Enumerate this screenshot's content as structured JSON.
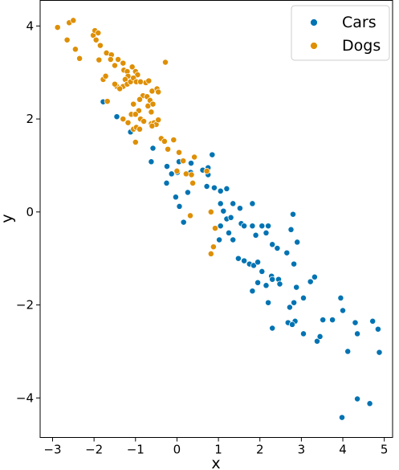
{
  "chart_data": {
    "type": "scatter",
    "xlabel": "x",
    "ylabel": "y",
    "xlim": [
      -3.3,
      5.2
    ],
    "ylim": [
      -4.85,
      4.55
    ],
    "xticks": [
      -3,
      -2,
      -1,
      0,
      1,
      2,
      3,
      4,
      5
    ],
    "yticks": [
      -4,
      -2,
      0,
      2,
      4
    ],
    "grid": false,
    "legend_position": "upper right",
    "colors": {
      "Cars": "#0173b2",
      "Dogs": "#de8f05"
    },
    "series": [
      {
        "name": "Cars",
        "points": [
          [
            -1.78,
            2.37
          ],
          [
            -1.45,
            2.05
          ],
          [
            -1.12,
            1.72
          ],
          [
            -0.62,
            1.08
          ],
          [
            -0.58,
            1.37
          ],
          [
            -0.24,
            0.98
          ],
          [
            -0.13,
            0.82
          ],
          [
            0.01,
            0.85
          ],
          [
            0.05,
            1.08
          ],
          [
            0.33,
            0.85
          ],
          [
            0.34,
            1.05
          ],
          [
            0.62,
            0.9
          ],
          [
            0.75,
            0.95
          ],
          [
            0.75,
            0.8
          ],
          [
            0.85,
            1.23
          ],
          [
            -0.25,
            0.62
          ],
          [
            -0.03,
            0.32
          ],
          [
            0.06,
            0.12
          ],
          [
            0.16,
            -0.22
          ],
          [
            0.26,
            0.42
          ],
          [
            0.72,
            0.55
          ],
          [
            0.9,
            0.52
          ],
          [
            1.05,
            0.45
          ],
          [
            1.2,
            0.5
          ],
          [
            1.05,
            0.18
          ],
          [
            1.12,
            0.02
          ],
          [
            1.2,
            -0.15
          ],
          [
            1.3,
            -0.12
          ],
          [
            1.35,
            0.18
          ],
          [
            1.52,
            0.08
          ],
          [
            1.55,
            -0.25
          ],
          [
            1.62,
            -0.3
          ],
          [
            1.82,
            0.18
          ],
          [
            1.82,
            -0.3
          ],
          [
            1.9,
            -0.5
          ],
          [
            2.05,
            -0.3
          ],
          [
            2.15,
            -0.45
          ],
          [
            2.2,
            -0.3
          ],
          [
            2.3,
            -0.7
          ],
          [
            2.42,
            -0.78
          ],
          [
            2.65,
            -0.88
          ],
          [
            2.75,
            -0.38
          ],
          [
            2.8,
            -0.05
          ],
          [
            2.9,
            -0.65
          ],
          [
            1.05,
            -0.3
          ],
          [
            1.25,
            -0.45
          ],
          [
            1.35,
            -0.6
          ],
          [
            1.02,
            -0.6
          ],
          [
            1.48,
            -1.0
          ],
          [
            1.62,
            -1.05
          ],
          [
            1.75,
            -1.12
          ],
          [
            1.85,
            -1.15
          ],
          [
            1.95,
            -1.08
          ],
          [
            2.05,
            -1.28
          ],
          [
            2.15,
            -1.58
          ],
          [
            2.28,
            -1.38
          ],
          [
            2.3,
            -1.45
          ],
          [
            2.45,
            -1.45
          ],
          [
            2.48,
            -1.55
          ],
          [
            2.82,
            -1.12
          ],
          [
            2.88,
            -1.62
          ],
          [
            3.22,
            -1.5
          ],
          [
            3.32,
            -1.4
          ],
          [
            1.82,
            -1.7
          ],
          [
            1.95,
            -1.52
          ],
          [
            2.82,
            -1.95
          ],
          [
            2.72,
            -2.05
          ],
          [
            2.85,
            -2.35
          ],
          [
            3.05,
            -1.85
          ],
          [
            2.2,
            -1.95
          ],
          [
            2.68,
            -2.38
          ],
          [
            2.78,
            -2.42
          ],
          [
            2.3,
            -2.5
          ],
          [
            3.05,
            -2.62
          ],
          [
            3.38,
            -2.78
          ],
          [
            3.45,
            -2.68
          ],
          [
            3.52,
            -2.32
          ],
          [
            3.75,
            -2.32
          ],
          [
            3.95,
            -1.85
          ],
          [
            4.0,
            -2.12
          ],
          [
            4.3,
            -2.38
          ],
          [
            4.35,
            -2.62
          ],
          [
            4.72,
            -2.35
          ],
          [
            4.85,
            -2.52
          ],
          [
            4.88,
            -3.02
          ],
          [
            4.12,
            -3.0
          ],
          [
            4.35,
            -4.02
          ],
          [
            4.65,
            -4.12
          ],
          [
            3.98,
            -4.42
          ]
        ]
      },
      {
        "name": "Dogs",
        "points": [
          [
            -2.88,
            3.97
          ],
          [
            -2.6,
            4.07
          ],
          [
            -2.5,
            4.12
          ],
          [
            -2.45,
            3.5
          ],
          [
            -2.65,
            3.7
          ],
          [
            -2.35,
            3.3
          ],
          [
            -2.02,
            3.8
          ],
          [
            -1.98,
            3.9
          ],
          [
            -1.9,
            3.85
          ],
          [
            -1.95,
            3.7
          ],
          [
            -1.85,
            3.58
          ],
          [
            -1.88,
            3.27
          ],
          [
            -1.7,
            3.42
          ],
          [
            -1.58,
            3.38
          ],
          [
            -1.6,
            3.28
          ],
          [
            -1.5,
            3.15
          ],
          [
            -1.42,
            3.28
          ],
          [
            -1.3,
            3.2
          ],
          [
            -1.28,
            3.05
          ],
          [
            -1.2,
            3.02
          ],
          [
            -1.08,
            3.12
          ],
          [
            -1.0,
            3.02
          ],
          [
            -0.95,
            2.95
          ],
          [
            -1.18,
            2.92
          ],
          [
            -1.25,
            2.85
          ],
          [
            -1.3,
            2.7
          ],
          [
            -1.2,
            2.75
          ],
          [
            -1.12,
            2.8
          ],
          [
            -1.05,
            2.88
          ],
          [
            -0.98,
            2.8
          ],
          [
            -0.88,
            2.8
          ],
          [
            -0.75,
            2.78
          ],
          [
            -0.68,
            2.82
          ],
          [
            -0.6,
            2.6
          ],
          [
            -0.48,
            2.65
          ],
          [
            -0.82,
            2.5
          ],
          [
            -0.9,
            2.42
          ],
          [
            -0.72,
            2.48
          ],
          [
            -0.65,
            2.4
          ],
          [
            -1.05,
            2.32
          ],
          [
            -0.92,
            2.18
          ],
          [
            -0.7,
            2.28
          ],
          [
            -0.62,
            2.15
          ],
          [
            -0.58,
            2.32
          ],
          [
            -0.45,
            2.58
          ],
          [
            -1.1,
            2.1
          ],
          [
            -1.45,
            2.7
          ],
          [
            -1.38,
            2.65
          ],
          [
            -1.5,
            2.75
          ],
          [
            -1.78,
            2.85
          ],
          [
            -1.72,
            2.92
          ],
          [
            -1.68,
            2.38
          ],
          [
            -1.3,
            2.0
          ],
          [
            -1.18,
            1.92
          ],
          [
            -1.0,
            2.1
          ],
          [
            -0.88,
            2.0
          ],
          [
            -0.8,
            1.95
          ],
          [
            -1.05,
            1.78
          ],
          [
            -0.98,
            1.82
          ],
          [
            -0.9,
            1.78
          ],
          [
            -0.62,
            1.9
          ],
          [
            -0.55,
            1.92
          ],
          [
            -0.5,
            1.88
          ],
          [
            -0.45,
            1.98
          ],
          [
            -0.38,
            1.58
          ],
          [
            -0.3,
            1.52
          ],
          [
            -0.22,
            1.35
          ],
          [
            -0.6,
            1.85
          ],
          [
            -1.0,
            1.5
          ],
          [
            -0.28,
            3.22
          ],
          [
            -0.08,
            1.55
          ],
          [
            0.05,
            1.28
          ],
          [
            0.15,
            1.1
          ],
          [
            0.42,
            1.18
          ],
          [
            0.0,
            0.88
          ],
          [
            0.22,
            0.82
          ],
          [
            0.35,
            0.8
          ],
          [
            0.38,
            0.62
          ],
          [
            0.72,
            0.88
          ],
          [
            0.82,
            0.0
          ],
          [
            0.32,
            -0.08
          ],
          [
            0.92,
            -0.35
          ],
          [
            0.88,
            -0.75
          ],
          [
            0.82,
            -0.9
          ]
        ]
      }
    ]
  }
}
